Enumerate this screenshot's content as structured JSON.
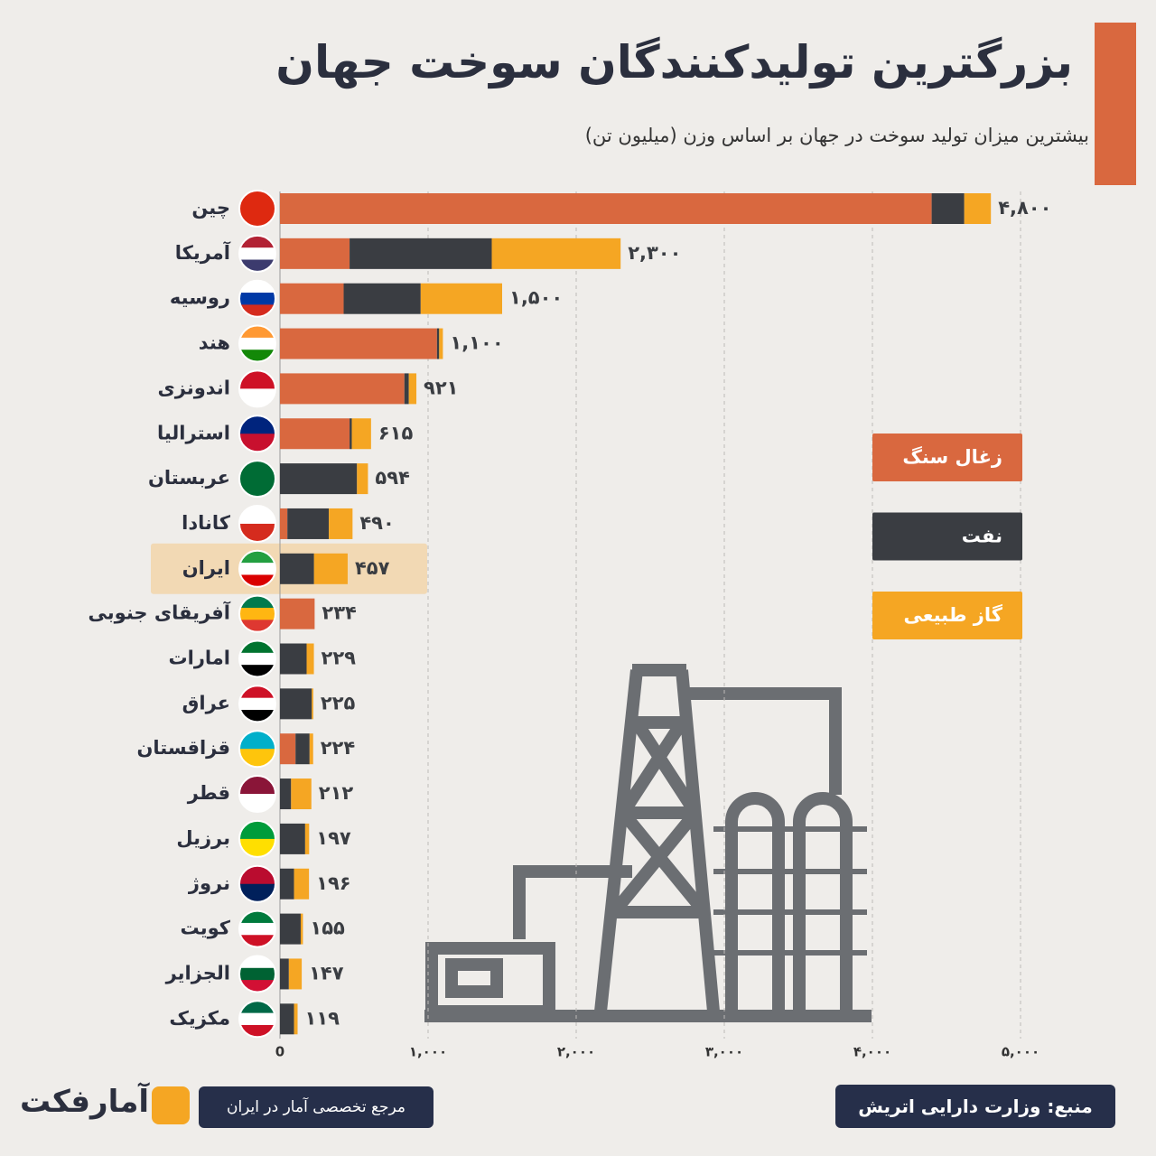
{
  "chart_data": {
    "type": "stacked-bar-horizontal",
    "title": "بزرگترین تولیدکنندگان سوخت جهان",
    "subtitle": "بیشترین میزان تولید سوخت در جهان بر اساس وزن (میلیون تن)",
    "categories": [
      "چین",
      "آمریکا",
      "روسیه",
      "هند",
      "اندونزی",
      "استرالیا",
      "عربستان",
      "کانادا",
      "ایران",
      "آفریقای جنوبی",
      "امارات",
      "عراق",
      "قزاقستان",
      "قطر",
      "برزیل",
      "نروژ",
      "کویت",
      "الجزایر",
      "مکزیک"
    ],
    "series": [
      {
        "name": "زغال سنگ",
        "color": "#d9683f",
        "values": [
          4400,
          470,
          430,
          1060,
          840,
          470,
          0,
          50,
          0,
          234,
          0,
          0,
          105,
          0,
          0,
          0,
          0,
          0,
          0
        ]
      },
      {
        "name": "نفت",
        "color": "#3a3d42",
        "values": [
          220,
          960,
          520,
          15,
          30,
          15,
          520,
          280,
          230,
          0,
          180,
          215,
          95,
          75,
          170,
          95,
          140,
          60,
          95
        ]
      },
      {
        "name": "گاز طبیعی",
        "color": "#f5a623",
        "values": [
          180,
          870,
          550,
          25,
          51,
          130,
          74,
          160,
          227,
          0,
          49,
          10,
          24,
          137,
          27,
          101,
          15,
          87,
          24
        ]
      }
    ],
    "totals": [
      4800,
      2300,
      1500,
      1100,
      921,
      615,
      594,
      490,
      457,
      234,
      229,
      225,
      224,
      212,
      197,
      196,
      155,
      147,
      119
    ],
    "total_labels": [
      "۴,۸۰۰",
      "۲,۳۰۰",
      "۱,۵۰۰",
      "۱,۱۰۰",
      "۹۲۱",
      "۶۱۵",
      "۵۹۴",
      "۴۹۰",
      "۴۵۷",
      "۲۳۴",
      "۲۲۹",
      "۲۲۵",
      "۲۲۴",
      "۲۱۲",
      "۱۹۷",
      "۱۹۶",
      "۱۵۵",
      "۱۴۷",
      "۱۱۹"
    ],
    "xlim": [
      0,
      5000
    ],
    "xticks": [
      0,
      {
        "value": 1000,
        "label": "۱,۰۰۰"
      },
      {
        "value": 2000,
        "label": "۲,۰۰۰"
      },
      {
        "value": 3000,
        "label": "۳,۰۰۰"
      },
      {
        "value": 4000,
        "label": "۴,۰۰۰"
      },
      {
        "value": 5000,
        "label": "۵,۰۰۰"
      }
    ],
    "grid": true,
    "highlight": "ایران"
  },
  "footer": {
    "source": "منبع: وزارت دارایی اتریش",
    "tagline": "مرجع تخصصی آمار در ایران",
    "brand": "آمارفکت"
  }
}
